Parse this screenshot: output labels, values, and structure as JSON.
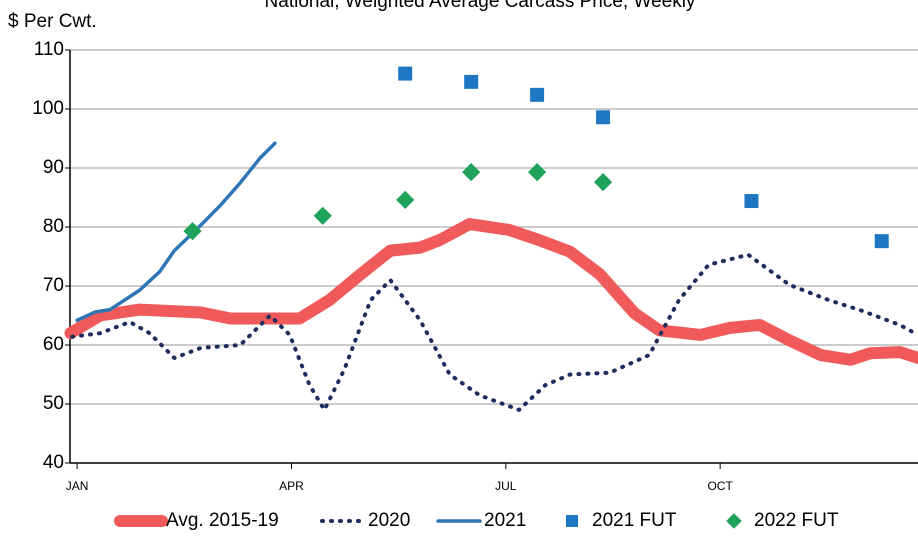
{
  "chart_data": {
    "type": "line",
    "title": "National, Weighted Average Carcass Price, Weekly",
    "y_label": "$ Per Cwt.",
    "xlim": [
      0.57,
      52
    ],
    "xticks": [
      {
        "value": 1,
        "label": "JAN"
      },
      {
        "value": 14,
        "label": "APR"
      },
      {
        "value": 27,
        "label": "JUL"
      },
      {
        "value": 40,
        "label": "OCT"
      }
    ],
    "ylim": [
      40,
      110
    ],
    "yticks": [
      40,
      50,
      60,
      70,
      80,
      90,
      100,
      110
    ],
    "grid": true,
    "legend": "bottom",
    "series": [
      {
        "name": "Avg. 2015-19",
        "color": "#f05a5a",
        "style": "thick",
        "x": [
          0.6,
          2.4,
          4.8,
          8.5,
          10.3,
          14.5,
          16.3,
          18.2,
          20,
          21.8,
          23,
          24.8,
          27.2,
          29,
          30.9,
          32.7,
          34.8,
          36.3,
          38.8,
          40.6,
          42.4,
          44.2,
          46.1,
          47.9,
          49.1,
          50.9,
          52
        ],
        "values": [
          62,
          65,
          66,
          65.5,
          64.5,
          64.5,
          67.6,
          72,
          76,
          76.5,
          77.8,
          80.5,
          79.5,
          77.8,
          75.8,
          72,
          65.4,
          62.5,
          61.7,
          62.9,
          63.4,
          60.8,
          58.3,
          57.5,
          58.6,
          58.8,
          57.8
        ]
      },
      {
        "name": "2020",
        "color": "#1f2d5c",
        "style": "dotted",
        "x": [
          0.7,
          2.4,
          4.2,
          5.4,
          6.9,
          8.5,
          10.9,
          12.7,
          13.9,
          15.1,
          16,
          17.2,
          18.8,
          20,
          21.8,
          23.6,
          25.4,
          27.8,
          29.4,
          30.9,
          33.3,
          35.7,
          37.5,
          39.3,
          41.7,
          44.2,
          46.6,
          48.5,
          50.9,
          52
        ],
        "values": [
          61.4,
          62,
          63.9,
          62,
          57.8,
          59.5,
          60,
          65,
          61.7,
          53.2,
          49,
          55.8,
          67.6,
          71,
          64.2,
          55,
          51.5,
          49,
          53.2,
          55,
          55.3,
          58.3,
          67.6,
          73.6,
          75.3,
          70.2,
          67.6,
          65.9,
          63.4,
          61.7
        ]
      },
      {
        "name": "2021",
        "color": "#2e75b6",
        "style": "solid",
        "x": [
          1,
          2.1,
          3,
          4.8,
          6,
          6.9,
          8.5,
          9.7,
          10.9,
          12.1,
          13
        ],
        "values": [
          64.2,
          65.6,
          66,
          69.3,
          72.4,
          76,
          80.3,
          83.7,
          87.5,
          91.7,
          94.2
        ]
      },
      {
        "name": "2021 FUT",
        "color": "#1f77c4",
        "marker": "square",
        "x": [
          20.9,
          24.9,
          28.9,
          32.9,
          41.9,
          49.8
        ],
        "values": [
          106,
          104.6,
          102.4,
          98.6,
          84.4,
          77.6
        ]
      },
      {
        "name": "2022 FUT",
        "color": "#1fa35a",
        "marker": "diamond",
        "x": [
          8,
          15.9,
          20.9,
          24.9,
          28.9,
          32.9
        ],
        "values": [
          79.3,
          81.9,
          84.6,
          89.3,
          89.3,
          87.6
        ]
      }
    ]
  }
}
